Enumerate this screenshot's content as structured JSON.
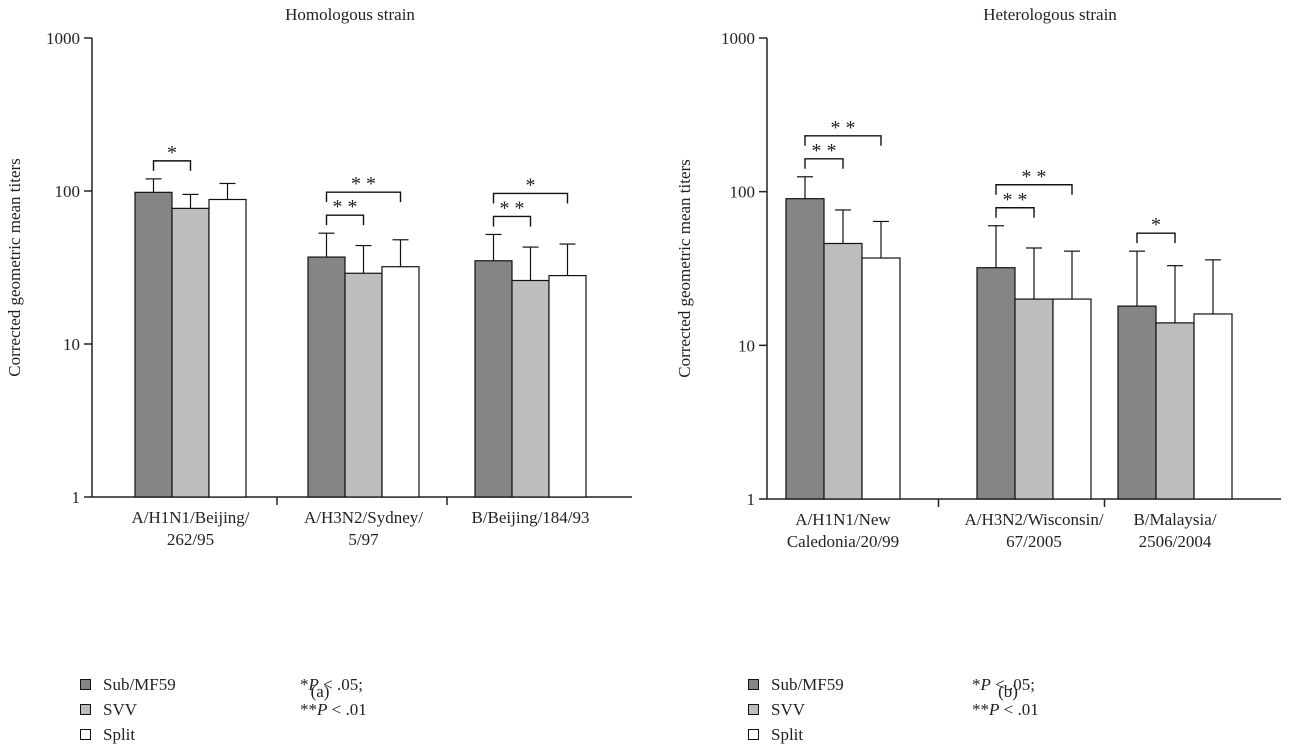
{
  "colors": {
    "sub_mf59": "#858585",
    "svv": "#bdbdbd",
    "split": "#ffffff",
    "axis": "#222222"
  },
  "chart_data": [
    {
      "type": "bar",
      "title": "Homologous strain",
      "ylabel": "Corrected geometric mean titers",
      "yscale": "log",
      "ylim": [
        1,
        1000
      ],
      "yticks": [
        "1",
        "10",
        "100",
        "1000"
      ],
      "categories": [
        [
          "A/H1N1/Beijing/",
          "262/95"
        ],
        [
          "A/H3N2/Sydney/",
          "5/97"
        ],
        [
          "B/Beijing/184/93"
        ]
      ],
      "series": [
        {
          "name": "Sub/MF59",
          "values": [
            98,
            37,
            35
          ],
          "err": [
            120,
            53,
            52
          ]
        },
        {
          "name": "SVV",
          "values": [
            77,
            29,
            26
          ],
          "err": [
            95,
            44,
            43
          ]
        },
        {
          "name": "Split",
          "values": [
            88,
            32,
            28
          ],
          "err": [
            112,
            48,
            45
          ]
        }
      ],
      "significance": [
        {
          "group": 0,
          "from": 0,
          "to": 1,
          "label": "*",
          "level": 1
        },
        {
          "group": 1,
          "from": 0,
          "to": 1,
          "label": "**",
          "level": 1
        },
        {
          "group": 1,
          "from": 0,
          "to": 2,
          "label": "**",
          "level": 2
        },
        {
          "group": 2,
          "from": 0,
          "to": 1,
          "label": "**",
          "level": 1
        },
        {
          "group": 2,
          "from": 0,
          "to": 2,
          "label": "*",
          "level": 2
        }
      ],
      "caption": "(a)"
    },
    {
      "type": "bar",
      "title": "Heterologous strain",
      "ylabel": "Corrected geometric mean titers",
      "yscale": "log",
      "ylim": [
        1,
        1000
      ],
      "yticks": [
        "1",
        "10",
        "100",
        "1000"
      ],
      "categories": [
        [
          "A/H1N1/New",
          "Caledonia/20/99"
        ],
        [
          "A/H3N2/Wisconsin/",
          "67/2005"
        ],
        [
          "B/Malaysia/",
          "2506/2004"
        ]
      ],
      "series": [
        {
          "name": "Sub/MF59",
          "values": [
            90,
            32,
            18
          ],
          "err": [
            125,
            60,
            41
          ]
        },
        {
          "name": "SVV",
          "values": [
            46,
            20,
            14
          ],
          "err": [
            76,
            43,
            33
          ]
        },
        {
          "name": "Split",
          "values": [
            37,
            20,
            16
          ],
          "err": [
            64,
            41,
            36
          ]
        }
      ],
      "significance": [
        {
          "group": 0,
          "from": 0,
          "to": 1,
          "label": "**",
          "level": 1
        },
        {
          "group": 0,
          "from": 0,
          "to": 2,
          "label": "**",
          "level": 2
        },
        {
          "group": 1,
          "from": 0,
          "to": 1,
          "label": "**",
          "level": 1
        },
        {
          "group": 1,
          "from": 0,
          "to": 2,
          "label": "**",
          "level": 2
        },
        {
          "group": 2,
          "from": 0,
          "to": 1,
          "label": "*",
          "level": 1
        }
      ],
      "caption": "(b)"
    }
  ],
  "legend": [
    {
      "label": "Sub/MF59",
      "color": "#858585"
    },
    {
      "label": "SVV",
      "color": "#bdbdbd"
    },
    {
      "label": "Split",
      "color": "#ffffff"
    }
  ],
  "pvalues": {
    "p05": {
      "stars": "*",
      "p": "P",
      "rest": " < .05;"
    },
    "p01": {
      "stars": "**",
      "p": "P",
      "rest": " < .01"
    }
  }
}
